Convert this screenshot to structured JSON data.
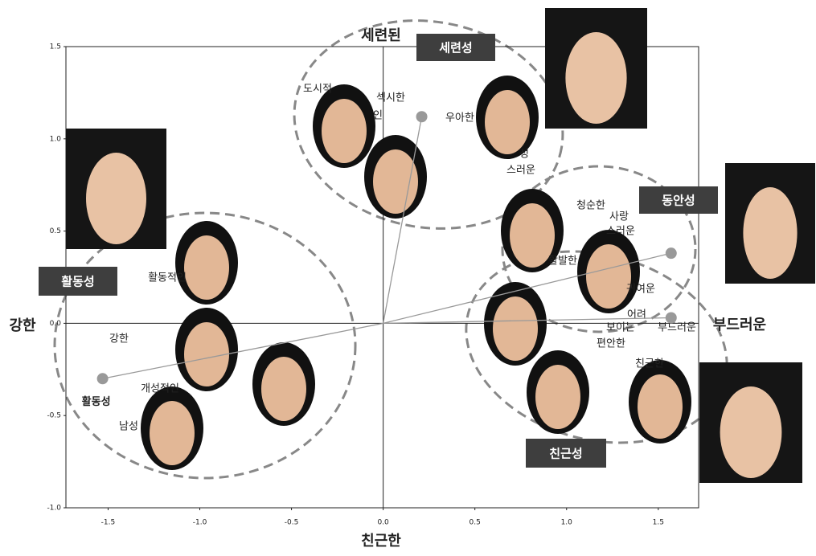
{
  "chart_data": {
    "type": "scatter",
    "axis_labels": {
      "top": "세련된",
      "bottom": "친근한",
      "left": "강한",
      "right": "부드러운"
    },
    "xlim": [
      -1.73,
      1.72
    ],
    "ylim": [
      -1.0,
      1.5
    ],
    "xticks": [
      -1.5,
      {
        "value": -1,
        "label": "-1.0"
      },
      -0.5,
      {
        "value": 0,
        "label": "0.0"
      },
      0.5,
      {
        "value": 1,
        "label": "1.0"
      },
      1.5
    ],
    "yticks": [
      {
        "value": -1,
        "label": "-1.0"
      },
      -0.5,
      {
        "value": 0,
        "label": "0.0"
      },
      0.5,
      {
        "value": 1,
        "label": "1.0"
      },
      1.5
    ],
    "vectors": [
      {
        "x": -1.53,
        "y": -0.3,
        "label": "활동성"
      },
      {
        "x": 0.21,
        "y": 1.12
      },
      {
        "x": 1.57,
        "y": 0.38
      },
      {
        "x": 1.57,
        "y": 0.03
      }
    ],
    "clusters": [
      "세련성",
      "동안성",
      "활동성",
      "친근성"
    ],
    "attributes": [
      "도시적",
      "섹시한",
      "인",
      "우아한",
      "성",
      "스러운",
      "청순한",
      "사랑",
      "스러운",
      "활발한",
      "귀여운",
      "어려",
      "보이는",
      "부드러운",
      "편안한",
      "친근한",
      "강한",
      "개성적인",
      "남성",
      "활동적인"
    ]
  }
}
